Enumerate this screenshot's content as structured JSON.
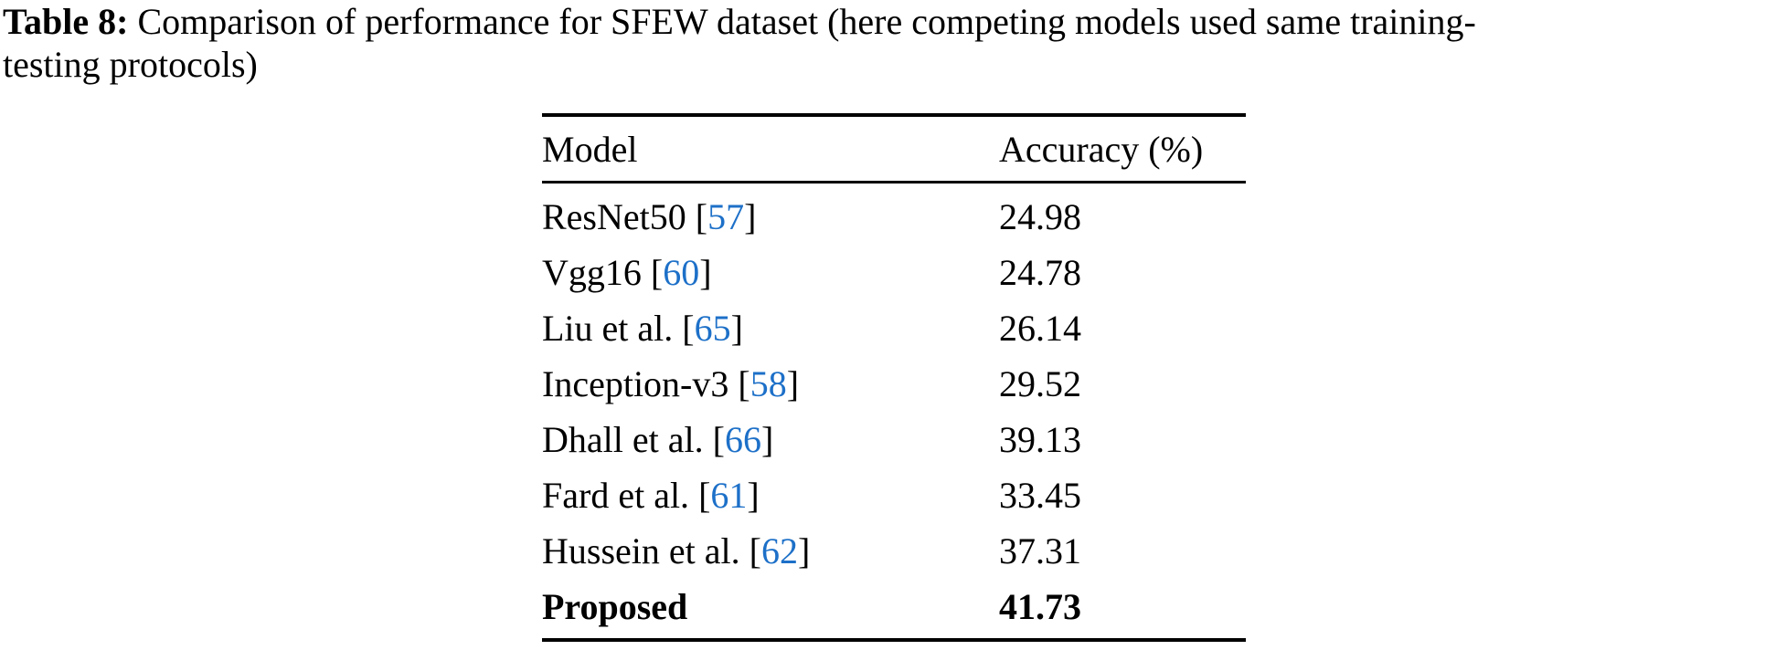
{
  "caption": {
    "label": "Table 8:",
    "line1": "Comparison of performance for SFEW dataset (here competing models used same training-",
    "line2": "testing protocols)"
  },
  "table": {
    "headers": {
      "model": "Model",
      "accuracy": "Accuracy (%)"
    },
    "brackets": {
      "open": "[",
      "close": "]"
    },
    "rows": [
      {
        "model": "ResNet50",
        "ref": "57",
        "accuracy": "24.98",
        "bold": false
      },
      {
        "model": "Vgg16",
        "ref": "60",
        "accuracy": "24.78",
        "bold": false
      },
      {
        "model": "Liu et al.",
        "ref": "65",
        "accuracy": "26.14",
        "bold": false
      },
      {
        "model": "Inception-v3",
        "ref": "58",
        "accuracy": "29.52",
        "bold": false
      },
      {
        "model": "Dhall et al.",
        "ref": "66",
        "accuracy": "39.13",
        "bold": false
      },
      {
        "model": "Fard et al.",
        "ref": "61",
        "accuracy": "33.45",
        "bold": false
      },
      {
        "model": "Hussein et al.",
        "ref": "62",
        "accuracy": "37.31",
        "bold": false
      },
      {
        "model": "Proposed",
        "ref": null,
        "accuracy": "41.73",
        "bold": true
      }
    ]
  },
  "colors": {
    "citation": "#1d70c8",
    "text": "#000000",
    "background": "#ffffff"
  }
}
